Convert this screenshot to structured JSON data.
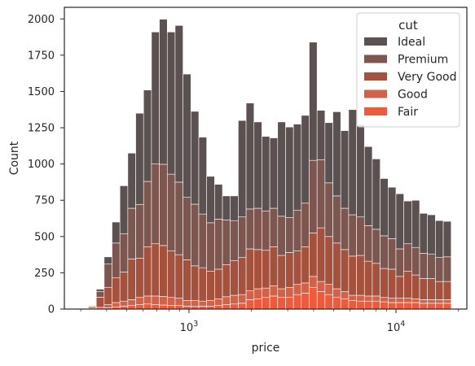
{
  "chart_data": {
    "type": "bar",
    "subtype": "stacked-histogram",
    "title": "",
    "xlabel": "price",
    "ylabel": "Count",
    "xscale": "log",
    "xlim": [
      250,
      22000
    ],
    "ylim": [
      0,
      2080
    ],
    "grid": false,
    "x_ticks": [
      {
        "value": 1000,
        "base": "10",
        "exp": "3"
      },
      {
        "value": 10000,
        "base": "10",
        "exp": "4"
      }
    ],
    "y_ticks": [
      0,
      250,
      500,
      750,
      1000,
      1250,
      1500,
      1750,
      2000
    ],
    "bin_edges_log10": [
      2.514,
      2.5521,
      2.5902,
      2.6283,
      2.6664,
      2.7045,
      2.7426,
      2.7807,
      2.8188,
      2.8569,
      2.895,
      2.9331,
      2.9712,
      3.0093,
      3.0474,
      3.0855,
      3.1236,
      3.1617,
      3.1998,
      3.2379,
      3.276,
      3.3141,
      3.3522,
      3.3903,
      3.4284,
      3.4665,
      3.5046,
      3.5427,
      3.5808,
      3.6189,
      3.657,
      3.6951,
      3.7332,
      3.7713,
      3.8094,
      3.8475,
      3.8856,
      3.9237,
      3.9618,
      3.9999,
      4.038,
      4.0761,
      4.1142,
      4.1523,
      4.1904,
      4.2285,
      4.2666
    ],
    "legend": {
      "title": "cut",
      "position": "upper right"
    },
    "series": [
      {
        "name": "Fair",
        "color": "#ee5a3c",
        "values": [
          0,
          2,
          8,
          15,
          20,
          25,
          30,
          35,
          30,
          28,
          25,
          25,
          20,
          18,
          20,
          20,
          25,
          30,
          35,
          40,
          65,
          70,
          80,
          90,
          80,
          80,
          100,
          110,
          150,
          120,
          100,
          80,
          70,
          60,
          55,
          55,
          55,
          50,
          45,
          45,
          45,
          45,
          40,
          40,
          40,
          40
        ]
      },
      {
        "name": "Good",
        "color": "#cf6249",
        "values": [
          5,
          10,
          22,
          30,
          35,
          40,
          50,
          55,
          60,
          60,
          55,
          50,
          40,
          40,
          35,
          40,
          45,
          55,
          60,
          60,
          60,
          70,
          65,
          70,
          60,
          70,
          70,
          70,
          75,
          70,
          70,
          60,
          50,
          35,
          40,
          35,
          35,
          30,
          30,
          30,
          30,
          25,
          25,
          25,
          25,
          25
        ]
      },
      {
        "name": "Very Good",
        "color": "#a4513e",
        "values": [
          10,
          70,
          120,
          170,
          200,
          280,
          270,
          340,
          360,
          350,
          320,
          300,
          280,
          240,
          230,
          200,
          205,
          220,
          240,
          255,
          290,
          270,
          260,
          270,
          230,
          240,
          230,
          250,
          300,
          370,
          330,
          315,
          290,
          270,
          275,
          240,
          225,
          200,
          200,
          150,
          185,
          165,
          145,
          145,
          125,
          125
        ]
      },
      {
        "name": "Premium",
        "color": "#7d5650",
        "values": [
          5,
          40,
          160,
          240,
          265,
          350,
          370,
          450,
          550,
          560,
          530,
          500,
          430,
          425,
          370,
          335,
          345,
          310,
          275,
          280,
          275,
          285,
          270,
          265,
          270,
          240,
          280,
          300,
          500,
          470,
          370,
          325,
          285,
          285,
          265,
          245,
          235,
          225,
          210,
          190,
          190,
          190,
          175,
          170,
          165,
          170
        ]
      },
      {
        "name": "Ideal",
        "color": "#5b5150",
        "values": [
          0,
          15,
          50,
          145,
          330,
          380,
          630,
          630,
          910,
          1000,
          980,
          1080,
          850,
          640,
          530,
          320,
          240,
          165,
          170,
          665,
          730,
          595,
          515,
          485,
          650,
          625,
          595,
          605,
          815,
          340,
          415,
          580,
          535,
          725,
          635,
          545,
          485,
          395,
          355,
          380,
          295,
          325,
          275,
          270,
          255,
          245
        ]
      }
    ]
  }
}
